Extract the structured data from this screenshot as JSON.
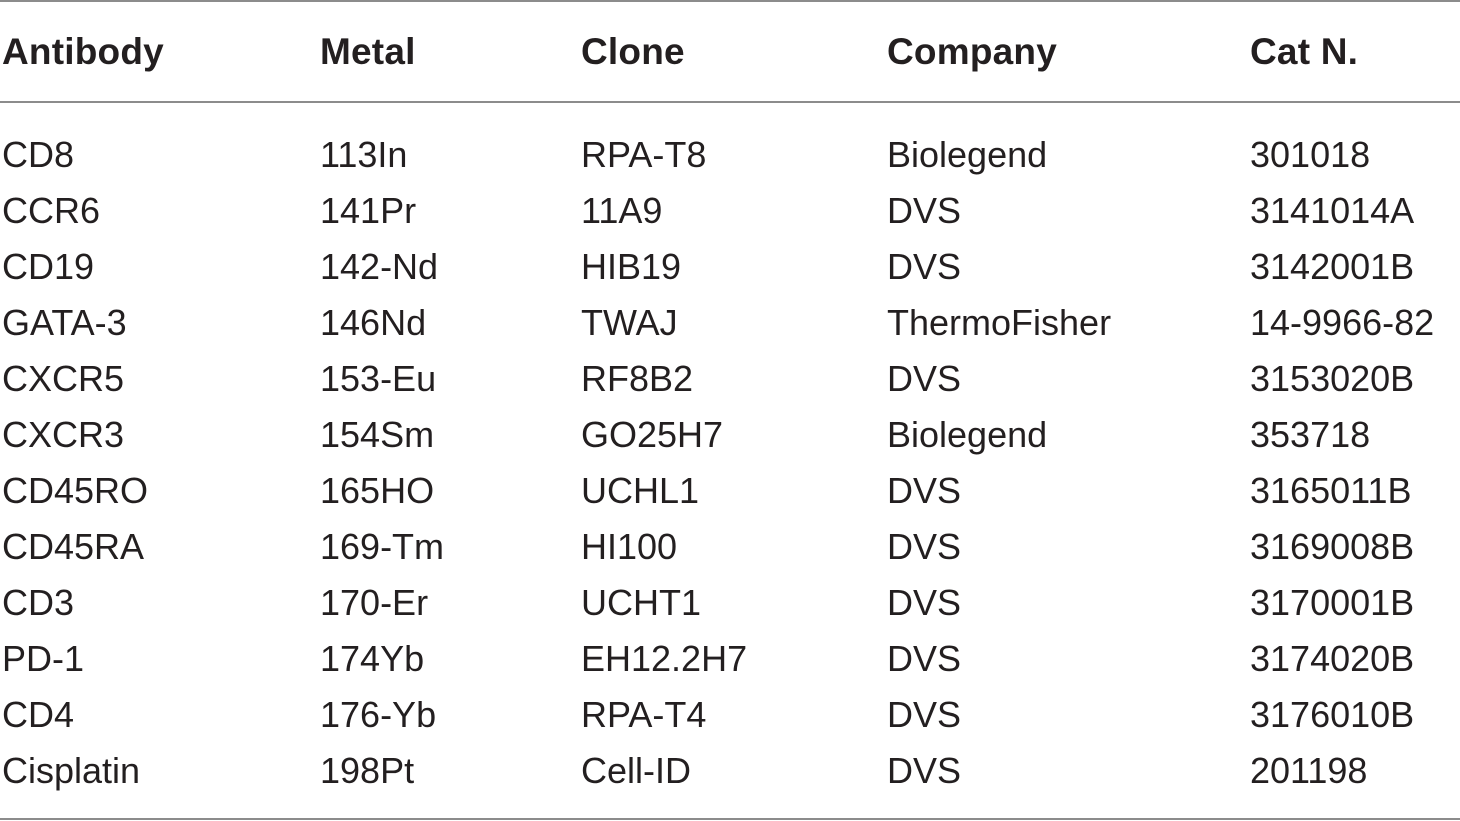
{
  "table": {
    "headers": [
      "Antibody",
      "Metal",
      "Clone",
      "Company",
      "Cat N."
    ],
    "rows": [
      [
        "CD8",
        "113In",
        "RPA-T8",
        "Biolegend",
        "301018"
      ],
      [
        "CCR6",
        "141Pr",
        "11A9",
        "DVS",
        "3141014A"
      ],
      [
        "CD19",
        "142-Nd",
        "HIB19",
        "DVS",
        "3142001B"
      ],
      [
        "GATA-3",
        "146Nd",
        "TWAJ",
        "ThermoFisher",
        "14-9966-82"
      ],
      [
        "CXCR5",
        "153-Eu",
        "RF8B2",
        "DVS",
        "3153020B"
      ],
      [
        "CXCR3",
        "154Sm",
        "GO25H7",
        "Biolegend",
        "353718"
      ],
      [
        "CD45RO",
        "165HO",
        " UCHL1",
        "DVS",
        " 3165011B"
      ],
      [
        "CD45RA",
        "169-Tm",
        "HI100",
        "DVS",
        "3169008B"
      ],
      [
        "CD3",
        "170-Er",
        "UCHT1",
        "DVS",
        "3170001B"
      ],
      [
        "PD-1",
        "174Yb",
        "EH12.2H7",
        "DVS",
        "3174020B"
      ],
      [
        "CD4",
        "176-Yb",
        "RPA-T4",
        "DVS",
        "3176010B"
      ],
      [
        "Cisplatin",
        "198Pt",
        "Cell-ID",
        "DVS",
        "201198"
      ]
    ]
  }
}
